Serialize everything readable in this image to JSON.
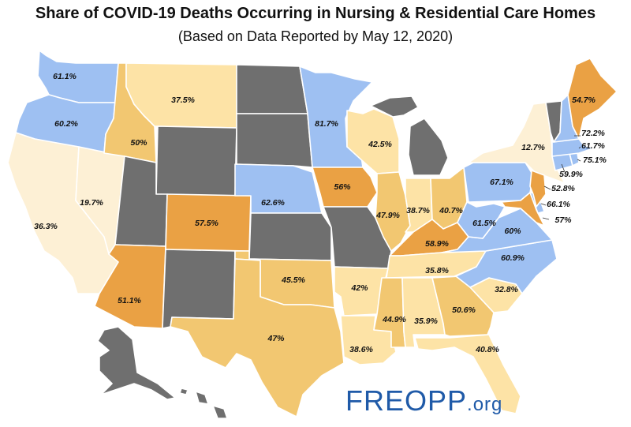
{
  "title": "Share of COVID-19 Deaths Occurring in Nursing & Residential Care Homes",
  "subtitle": "(Based on Data Reported by May 12, 2020)",
  "logo": {
    "main": "FREOPP",
    "suffix": ".org"
  },
  "colors": {
    "no_data": "#6f6f6f",
    "lt_30": "#fdf0d5",
    "30_40": "#fde3a6",
    "40_50": "#f2c771",
    "50_60": "#eaa144",
    "gt_60": "#9ec0f2"
  },
  "states": {
    "WA": "61.1%",
    "OR": "60.2%",
    "CA": "36.3%",
    "NV": "19.7%",
    "ID": "50%",
    "MT": "37.5%",
    "CO": "57.5%",
    "AZ": "51.1%",
    "NE": "62.6%",
    "MN": "81.7%",
    "IA": "56%",
    "WI": "42.5%",
    "IL": "47.9%",
    "IN": "38.7%",
    "OH": "40.7%",
    "KY": "58.9%",
    "TN": "35.8%",
    "OK": "45.5%",
    "TX": "47%",
    "AR": "42%",
    "LA": "38.6%",
    "MS": "44.9%",
    "AL": "35.9%",
    "GA": "50.6%",
    "FL": "40.8%",
    "SC": "32.8%",
    "NC": "60.9%",
    "VA": "60%",
    "WV": "61.5%",
    "PA": "67.1%",
    "NY": "12.7%",
    "ME": "54.7%",
    "NH": "72.2%",
    "MA": "61.7%",
    "RI": "75.1%",
    "CT": "59.9%",
    "NJ": "52.8%",
    "DE": "66.1%",
    "MD": "57%"
  }
}
